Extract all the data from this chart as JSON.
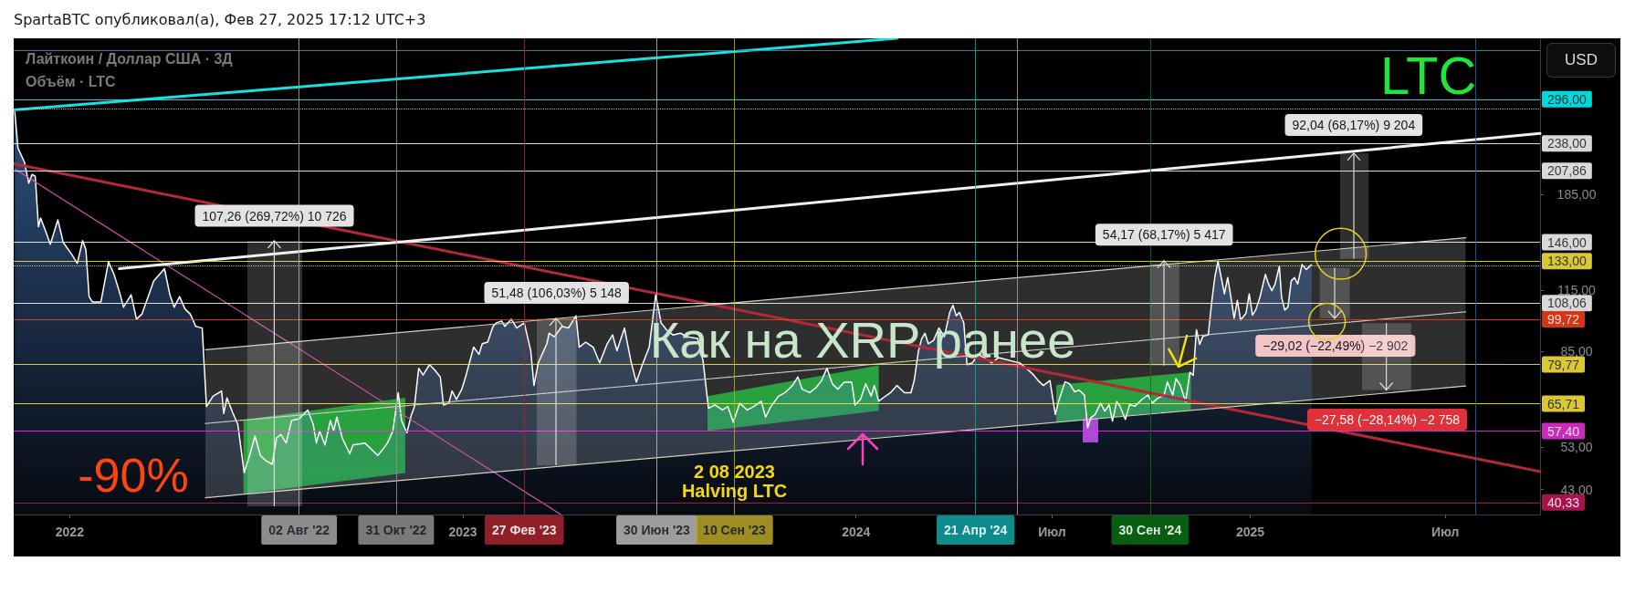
{
  "chart_data": {
    "type": "area",
    "title": "LTC",
    "subtitle": "SpartaBTC опубликовал(а), Фев 27, 2025 17:12 UTC+3",
    "xlim": [
      "2021-11-10",
      "2025-09-27"
    ],
    "ylim": [
      38,
      400
    ],
    "log": true,
    "grid": false,
    "marker": "none",
    "xticks": [
      "2022",
      "2023",
      "2024",
      {
        "value": "2024-07",
        "label": "Июл"
      },
      "2025",
      {
        "value": "2025-07",
        "label": "Июл"
      }
    ],
    "yticks": [
      {
        "value": 43,
        "label": "43,00"
      },
      {
        "value": 53,
        "label": "53,00"
      },
      {
        "value": 85,
        "label": "85,00"
      },
      {
        "value": 115,
        "label": "115,00"
      },
      {
        "value": 185,
        "label": "185,00"
      }
    ],
    "x": [
      "2021-11-11",
      "2021-11-14",
      "2021-11-20",
      "2021-11-24",
      "2021-11-27",
      "2021-11-30",
      "2021-12-03",
      "2021-12-05",
      "2021-12-10",
      "2021-12-14",
      "2021-12-21",
      "2021-12-26",
      "2022-01-03",
      "2022-01-08",
      "2022-01-13",
      "2022-01-16",
      "2022-01-19",
      "2022-01-22",
      "2022-01-30",
      "2022-02-06",
      "2022-02-11",
      "2022-02-16",
      "2022-02-20",
      "2022-02-27",
      "2022-03-04",
      "2022-03-09",
      "2022-03-20",
      "2022-03-30",
      "2022-04-04",
      "2022-04-08",
      "2022-04-13",
      "2022-04-18",
      "2022-04-23",
      "2022-04-28",
      "2022-05-04",
      "2022-05-08",
      "2022-05-14",
      "2022-05-22",
      "2022-05-24",
      "2022-05-27",
      "2022-06-01",
      "2022-06-06",
      "2022-06-12",
      "2022-06-17",
      "2022-06-22",
      "2022-06-27",
      "2022-07-02",
      "2022-07-08",
      "2022-07-12",
      "2022-07-16",
      "2022-07-21",
      "2022-07-26",
      "2022-08-02",
      "2022-08-10",
      "2022-08-15",
      "2022-08-18",
      "2022-08-21",
      "2022-08-26",
      "2022-08-31",
      "2022-09-03",
      "2022-09-06",
      "2022-09-11",
      "2022-09-18",
      "2022-09-21",
      "2022-10-02",
      "2022-10-14",
      "2022-10-18",
      "2022-10-23",
      "2022-10-28",
      "2022-11-02",
      "2022-11-05",
      "2022-11-10",
      "2022-11-14",
      "2022-11-17",
      "2022-11-21",
      "2022-11-25",
      "2022-12-01",
      "2022-12-06",
      "2022-12-11",
      "2022-12-14",
      "2022-12-19",
      "2022-12-22",
      "2022-12-26",
      "2022-12-31",
      "2023-01-04",
      "2023-01-11",
      "2023-01-16",
      "2023-01-19",
      "2023-01-24",
      "2023-01-29",
      "2023-02-01",
      "2023-02-06",
      "2023-02-09",
      "2023-02-15",
      "2023-02-20",
      "2023-02-27",
      "2023-03-02",
      "2023-03-05",
      "2023-03-08",
      "2023-03-12",
      "2023-03-20",
      "2023-03-22",
      "2023-03-27",
      "2023-04-03",
      "2023-04-09",
      "2023-04-16",
      "2023-04-19",
      "2023-04-25",
      "2023-05-02",
      "2023-05-08",
      "2023-05-15",
      "2023-05-20",
      "2023-05-24",
      "2023-05-31",
      "2023-06-06",
      "2023-06-11",
      "2023-06-16",
      "2023-06-23",
      "2023-06-29",
      "2023-07-04",
      "2023-07-09",
      "2023-07-15",
      "2023-07-22",
      "2023-07-28",
      "2023-08-07",
      "2023-08-12",
      "2023-08-17",
      "2023-08-23",
      "2023-08-30",
      "2023-09-04",
      "2023-09-09",
      "2023-09-15",
      "2023-09-22",
      "2023-09-28",
      "2023-10-05",
      "2023-10-09",
      "2023-10-14",
      "2023-10-21",
      "2023-10-27",
      "2023-11-03",
      "2023-11-08",
      "2023-11-12",
      "2023-11-19",
      "2023-11-25",
      "2023-11-30",
      "2023-12-05",
      "2023-12-10",
      "2023-12-15",
      "2023-12-21",
      "2023-12-28",
      "2023-12-31",
      "2024-01-05",
      "2024-01-10",
      "2024-01-15",
      "2024-01-18",
      "2024-01-22",
      "2024-01-26",
      "2024-02-02",
      "2024-02-08",
      "2024-02-15",
      "2024-02-21",
      "2024-02-24",
      "2024-02-28",
      "2024-03-02",
      "2024-03-05",
      "2024-03-08",
      "2024-03-13",
      "2024-03-18",
      "2024-03-23",
      "2024-03-28",
      "2024-03-31",
      "2024-04-03",
      "2024-04-06",
      "2024-04-10",
      "2024-04-13",
      "2024-04-18",
      "2024-04-23",
      "2024-04-29",
      "2024-05-06",
      "2024-05-12",
      "2024-05-19",
      "2024-05-25",
      "2024-06-01",
      "2024-06-07",
      "2024-06-14",
      "2024-06-18",
      "2024-06-23",
      "2024-06-29",
      "2024-07-04",
      "2024-07-07",
      "2024-07-13",
      "2024-07-17",
      "2024-07-22",
      "2024-07-26",
      "2024-07-31",
      "2024-08-03",
      "2024-08-06",
      "2024-08-10",
      "2024-08-15",
      "2024-08-19",
      "2024-08-23",
      "2024-08-26",
      "2024-08-30",
      "2024-09-02",
      "2024-09-07",
      "2024-09-11",
      "2024-09-16",
      "2024-09-22",
      "2024-09-28",
      "2024-10-02",
      "2024-10-07",
      "2024-10-13",
      "2024-10-16",
      "2024-10-21",
      "2024-10-24",
      "2024-10-28",
      "2024-11-02",
      "2024-11-06",
      "2024-11-09",
      "2024-11-12",
      "2024-11-15",
      "2024-11-18",
      "2024-11-23",
      "2024-11-26",
      "2024-11-29",
      "2024-12-02",
      "2024-12-05",
      "2024-12-08",
      "2024-12-11",
      "2024-12-14",
      "2024-12-17",
      "2024-12-20",
      "2024-12-23",
      "2024-12-28",
      "2024-12-31",
      "2025-01-03",
      "2025-01-06",
      "2025-01-10",
      "2025-01-15",
      "2025-01-18",
      "2025-01-21",
      "2025-01-24",
      "2025-01-28",
      "2025-01-30",
      "2025-02-02",
      "2025-02-05",
      "2025-02-08",
      "2025-02-11",
      "2025-02-14",
      "2025-02-18",
      "2025-02-22",
      "2025-02-27"
    ],
    "series": [
      {
        "color": "#ffffff",
        "values": [
          278.6,
          232.4,
          216.9,
          195.5,
          204.1,
          202.4,
          157.6,
          164.5,
          153.5,
          144.5,
          163.1,
          145.8,
          137.3,
          131.5,
          147.1,
          140.9,
          111.6,
          108.7,
          108.7,
          132.6,
          124.8,
          114.5,
          105.9,
          112.6,
          99.8,
          102.3,
          120.6,
          128.1,
          112.6,
          105.9,
          111.6,
          105.0,
          102.3,
          96.3,
          95.5,
          64.8,
          68.2,
          70.0,
          62.6,
          67.6,
          63.1,
          59.4,
          46.7,
          50.9,
          56.0,
          50.9,
          49.6,
          48.7,
          55.5,
          56.4,
          54.1,
          60.5,
          61.0,
          63.7,
          59.4,
          54.1,
          57.4,
          53.6,
          60.5,
          57.4,
          61.5,
          55.5,
          51.3,
          53.6,
          54.1,
          50.9,
          52.2,
          54.1,
          57.4,
          69.4,
          60.5,
          56.9,
          62.0,
          64.8,
          78.3,
          75.7,
          79.7,
          77.6,
          75.0,
          65.3,
          65.9,
          70.0,
          67.1,
          70.6,
          75.7,
          86.9,
          83.9,
          88.4,
          89.1,
          96.3,
          98.0,
          98.9,
          96.3,
          99.8,
          95.5,
          98.0,
          91.5,
          85.4,
          71.9,
          80.4,
          88.4,
          93.1,
          91.5,
          96.3,
          95.5,
          101.5,
          86.9,
          89.1,
          86.9,
          80.4,
          88.4,
          92.3,
          85.4,
          95.5,
          81.1,
          73.1,
          79.0,
          86.9,
          112.6,
          98.0,
          94.7,
          92.3,
          93.1,
          91.5,
          90.7,
          81.1,
          64.2,
          65.3,
          63.7,
          64.8,
          60.0,
          65.9,
          63.7,
          64.8,
          66.5,
          61.5,
          64.8,
          68.2,
          69.4,
          71.9,
          75.0,
          70.6,
          69.4,
          71.2,
          73.7,
          78.3,
          72.5,
          70.6,
          73.1,
          73.1,
          65.3,
          67.1,
          72.5,
          68.2,
          71.9,
          66.5,
          67.6,
          69.4,
          71.9,
          69.4,
          69.4,
          73.7,
          85.4,
          90.7,
          93.1,
          88.4,
          89.9,
          95.5,
          91.5,
          103.2,
          106.9,
          101.5,
          103.2,
          98.0,
          79.7,
          80.4,
          83.9,
          82.5,
          80.4,
          82.5,
          81.8,
          81.1,
          80.4,
          78.3,
          75.7,
          73.7,
          71.9,
          73.7,
          62.3,
          66.4,
          73.2,
          72.6,
          69.7,
          70.3,
          68.6,
          58.4,
          61.3,
          62.3,
          65.9,
          63.3,
          65.4,
          60.3,
          66.4,
          64.9,
          60.8,
          65.4,
          64.9,
          67.0,
          68.6,
          65.9,
          67.5,
          68.6,
          73.2,
          68.6,
          74.4,
          72.0,
          66.4,
          76.8,
          75.6,
          94.7,
          88.1,
          91.7,
          92.4,
          107.7,
          122.6,
          132.9,
          122.6,
          113.1,
          122.6,
          111.3,
          100.2,
          109.5,
          99.4,
          102.7,
          113.1,
          101.8,
          104.4,
          111.3,
          124.5,
          118.7,
          114.9,
          118.7,
          129.7,
          111.3,
          104.4,
          106.0,
          120.6,
          122.6,
          118.7,
          130.7,
          127.6,
          130.7
        ]
      },
      {
        "type": "line",
        "color": "#19e0e0",
        "x": [
          "2021-11-10",
          "2024-02-08"
        ],
        "values": [
          280.6,
          400
        ]
      },
      {
        "type": "line",
        "color": "#b5283a",
        "x": [
          "2021-11-10",
          "2025-09-27"
        ],
        "values": [
          215.1,
          47.0
        ]
      },
      {
        "type": "line",
        "color": "#d455b5",
        "x": [
          "2021-11-11",
          "2023-04-02"
        ],
        "values": [
          209.6,
          38
        ]
      },
      {
        "type": "line",
        "color": "#f0f0f0",
        "x": [
          "2022-02-16",
          "2025-09-27"
        ],
        "values": [
          128.1,
          249.9
        ]
      },
      {
        "type": "line",
        "color": "#d6d3b8",
        "x": [
          "2022-05-07",
          "2025-07-20"
        ],
        "values": [
          85.8,
          149.2
        ]
      },
      {
        "type": "line",
        "color": "#d6d3b8",
        "x": [
          "2022-05-07",
          "2025-07-20"
        ],
        "values": [
          41.3,
          71.7
        ]
      },
      {
        "type": "line",
        "color": "#d0d0d0",
        "line_style": "dotted",
        "x": [
          "2022-05-07",
          "2025-07-20"
        ],
        "values": [
          59.6,
          103.5
        ]
      }
    ],
    "ref_lines": [
      {
        "axis": "y",
        "value": 376,
        "color": "#1f9fb5"
      },
      {
        "axis": "y",
        "value": 296,
        "label": "296,00",
        "color": "#00ffff"
      },
      {
        "axis": "y",
        "value": 282,
        "color": "#d9d9d9",
        "line_style": "dotted"
      },
      {
        "axis": "y",
        "value": 238,
        "label": "238,00",
        "color": "#ffffff"
      },
      {
        "axis": "y",
        "value": 207.86,
        "label": "207,86",
        "color": "#ffffff"
      },
      {
        "axis": "y",
        "value": 146,
        "label": "146,00",
        "color": "#ffffff"
      },
      {
        "axis": "y",
        "value": 133,
        "label": "133,00",
        "color": "#ffeb3b"
      },
      {
        "axis": "y",
        "value": 130,
        "color": "#d9d9d9",
        "line_style": "dotted"
      },
      {
        "axis": "y",
        "value": 108.06,
        "label": "108,06",
        "color": "#ffffff"
      },
      {
        "axis": "y",
        "value": 99.72,
        "label": "99,72",
        "color": "#ff3d14"
      },
      {
        "axis": "y",
        "value": 79.77,
        "label": "79,77",
        "color": "#ffeb3b"
      },
      {
        "axis": "y",
        "value": 65.71,
        "label": "65,71",
        "color": "#ffeb3b"
      },
      {
        "axis": "y",
        "value": 57.4,
        "label": "57,40",
        "color": "#ee33dd"
      },
      {
        "axis": "y",
        "value": 40.33,
        "label": "40,33",
        "color": "#c2185b"
      },
      {
        "axis": "x",
        "value": "2022-08-02",
        "label": "02 Авг '22",
        "color": "#a6a6a6"
      },
      {
        "axis": "x",
        "value": "2022-10-31",
        "label": "31 Окт '22",
        "color": "#8f8f8f"
      },
      {
        "axis": "x",
        "value": "2023-02-27",
        "label": "27 Фев '23",
        "color": "#a8252f"
      },
      {
        "axis": "x",
        "value": "2023-06-30",
        "label": "30 Июн '23",
        "color": "#b8b8b8"
      },
      {
        "axis": "x",
        "value": "2023-09-10",
        "label": "10 Сен '23",
        "color": "#b8a628"
      },
      {
        "axis": "x",
        "value": "2024-04-21",
        "label": "21 Апр '24",
        "color": "#10a5a5"
      },
      {
        "axis": "x",
        "value": "2024-05-30",
        "color": "#b59aa8"
      },
      {
        "axis": "x",
        "value": "2024-09-30",
        "label": "30 Сен '24",
        "color": "#0c6e14"
      },
      {
        "axis": "x",
        "value": "2025-07-29",
        "color": "#2a5d9f"
      }
    ],
    "annotations": [
      "Лайткоин / Доллар США · 3Д",
      "Объём · LTC",
      "USD",
      "Как на XRP ранее",
      "-90%",
      "2 08 2023",
      "Halving LTC",
      {
        "text": "107,26 (269,72%) 10 726",
        "x": "2022-07-10",
        "y": 146
      },
      {
        "text": "51,48 (106,03%) 5 148",
        "x": "2023-03-29",
        "y": 99.72
      },
      {
        "text": "54,17 (68,17%) 5 417",
        "x": "2024-10-13",
        "y": 133
      },
      {
        "text": "92,04 (68,17%) 9 204",
        "x": "2025-04-07",
        "y": 228.7
      },
      {
        "text": "−29,02 (−22,49%) −2 902",
        "x": "2025-03-21",
        "y": 99.72
      },
      {
        "text": "−27,58 (−28,14%) −2 758",
        "x": "2025-05-08",
        "y": 69.2
      }
    ]
  }
}
